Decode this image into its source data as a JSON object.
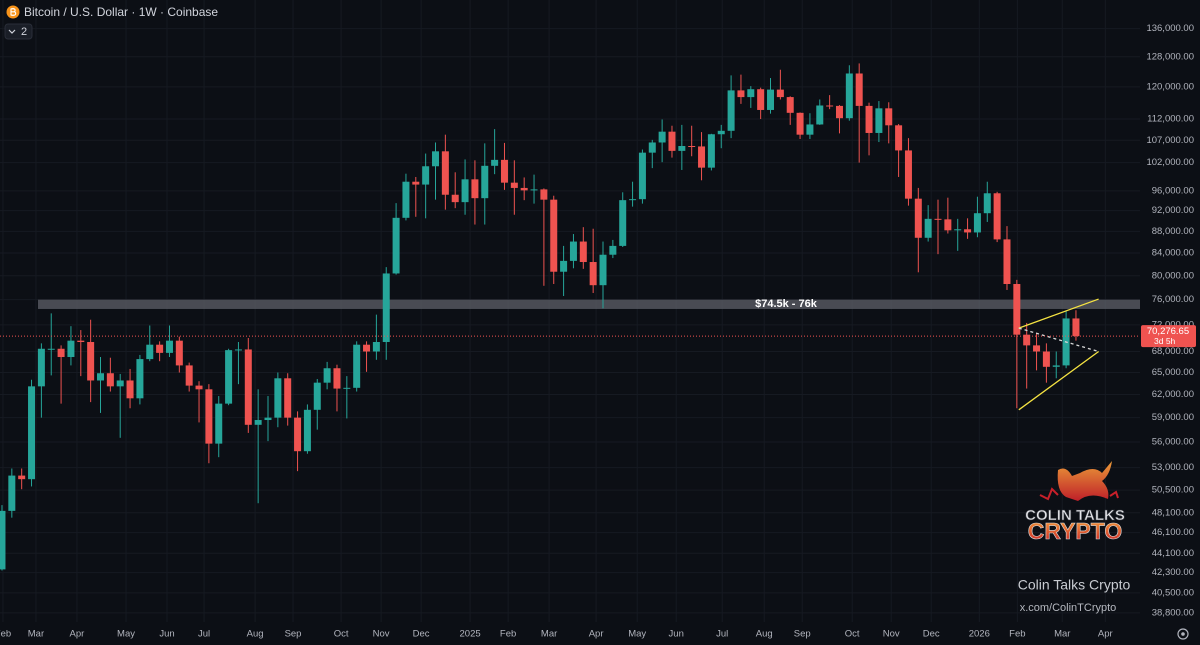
{
  "header": {
    "title": "Bitcoin / U.S. Dollar · 1W · Coinbase",
    "indicator_count": "2"
  },
  "watermark": {
    "logo_line1": "COLIN TALKS",
    "logo_line2": "CRYPTO",
    "name": "Colin Talks Crypto",
    "handle": "x.com/ColinTCrypto"
  },
  "chart_data": {
    "type": "candlestick",
    "log_scale": true,
    "grid": true,
    "up_color": "#26a69a",
    "down_color": "#ef5350",
    "xlim": [
      -0.2,
      115.5
    ],
    "ylim": [
      38050,
      144600
    ],
    "xticks": [
      {
        "value": 0.1,
        "label": "Feb"
      },
      {
        "value": 3.45,
        "label": "Mar"
      },
      {
        "value": 7.61,
        "label": "Apr"
      },
      {
        "value": 12.59,
        "label": "May"
      },
      {
        "value": 16.75,
        "label": "Jun"
      },
      {
        "value": 20.51,
        "label": "Jul"
      },
      {
        "value": 25.69,
        "label": "Aug"
      },
      {
        "value": 29.54,
        "label": "Sep"
      },
      {
        "value": 34.42,
        "label": "Oct"
      },
      {
        "value": 38.48,
        "label": "Nov"
      },
      {
        "value": 42.54,
        "label": "Dec"
      },
      {
        "value": 47.51,
        "label": "2025"
      },
      {
        "value": 51.37,
        "label": "Feb"
      },
      {
        "value": 55.53,
        "label": "Mar"
      },
      {
        "value": 60.3,
        "label": "Apr"
      },
      {
        "value": 64.47,
        "label": "May"
      },
      {
        "value": 68.43,
        "label": "Jun"
      },
      {
        "value": 73.1,
        "label": "Jul"
      },
      {
        "value": 77.36,
        "label": "Aug"
      },
      {
        "value": 81.22,
        "label": "Sep"
      },
      {
        "value": 86.29,
        "label": "Oct"
      },
      {
        "value": 90.25,
        "label": "Nov"
      },
      {
        "value": 94.31,
        "label": "Dec"
      },
      {
        "value": 99.19,
        "label": "2026"
      },
      {
        "value": 103.05,
        "label": "Feb"
      },
      {
        "value": 107.61,
        "label": "Mar"
      },
      {
        "value": 111.98,
        "label": "Apr"
      }
    ],
    "yticks": [
      {
        "value": 136000,
        "label": "136,000.00"
      },
      {
        "value": 128000,
        "label": "128,000.00"
      },
      {
        "value": 120000,
        "label": "120,000.00"
      },
      {
        "value": 112000,
        "label": "112,000.00"
      },
      {
        "value": 107000,
        "label": "107,000.00"
      },
      {
        "value": 102000,
        "label": "102,000.00"
      },
      {
        "value": 96000,
        "label": "96,000.00"
      },
      {
        "value": 92000,
        "label": "92,000.00"
      },
      {
        "value": 88000,
        "label": "88,000.00"
      },
      {
        "value": 84000,
        "label": "84,000.00"
      },
      {
        "value": 80000,
        "label": "80,000.00"
      },
      {
        "value": 76000,
        "label": "76,000.00"
      },
      {
        "value": 72000,
        "label": "72,000.00"
      },
      {
        "value": 68000,
        "label": "68,000.00"
      },
      {
        "value": 65000,
        "label": "65,000.00"
      },
      {
        "value": 62000,
        "label": "62,000.00"
      },
      {
        "value": 59000,
        "label": "59,000.00"
      },
      {
        "value": 56000,
        "label": "56,000.00"
      },
      {
        "value": 53000,
        "label": "53,000.00"
      },
      {
        "value": 50500,
        "label": "50,500.00"
      },
      {
        "value": 48100,
        "label": "48,100.00"
      },
      {
        "value": 46100,
        "label": "46,100.00"
      },
      {
        "value": 44100,
        "label": "44,100.00"
      },
      {
        "value": 42300,
        "label": "42,300.00"
      },
      {
        "value": 40500,
        "label": "40,500.00"
      },
      {
        "value": 38800,
        "label": "38,800.00"
      }
    ],
    "open": [
      42600,
      48300,
      52100,
      51700,
      63100,
      68400,
      68400,
      67200,
      69600,
      69400,
      63900,
      64900,
      63100,
      63900,
      61500,
      66900,
      69000,
      67800,
      69600,
      66000,
      63200,
      62700,
      55800,
      60800,
      68200,
      68300,
      58100,
      58700,
      59000,
      64200,
      59000,
      54900,
      60000,
      63600,
      65600,
      62800,
      62900,
      69000,
      68000,
      69400,
      80400,
      90600,
      97900,
      97300,
      101200,
      104500,
      95200,
      93700,
      98400,
      94500,
      101300,
      102600,
      97700,
      96600,
      96100,
      96300,
      94200,
      80700,
      82600,
      86100,
      82400,
      78400,
      83700,
      85300,
      94100,
      94300,
      104200,
      106500,
      109000,
      104600,
      105700,
      105600,
      100900,
      108400,
      109200,
      119100,
      117400,
      119400,
      114200,
      119300,
      117400,
      113500,
      108300,
      110700,
      115300,
      115200,
      112200,
      123500,
      115200,
      108700,
      114600,
      110500,
      104700,
      94400,
      86800,
      90400,
      90300,
      88200,
      88400,
      87800,
      91500,
      95500,
      86500,
      78600,
      70500,
      68900,
      68000,
      65800,
      66000,
      73000
    ],
    "high": [
      48900,
      52900,
      52900,
      64000,
      69200,
      73800,
      68900,
      71800,
      71200,
      72800,
      67200,
      67100,
      64800,
      65500,
      67500,
      71900,
      69500,
      71900,
      70200,
      66400,
      63800,
      63400,
      61800,
      68400,
      69400,
      70000,
      62700,
      61800,
      65000,
      64900,
      59800,
      60700,
      64100,
      66500,
      66100,
      64500,
      69500,
      69500,
      73600,
      81500,
      93500,
      99600,
      98900,
      104000,
      106500,
      108300,
      99900,
      102700,
      102500,
      106300,
      109600,
      106400,
      102500,
      98800,
      99400,
      96500,
      95000,
      85300,
      87500,
      88800,
      88500,
      86100,
      86400,
      95700,
      97900,
      104900,
      107100,
      111900,
      110400,
      110600,
      110400,
      108900,
      108500,
      110600,
      123000,
      123200,
      120200,
      119800,
      122300,
      124500,
      117600,
      113600,
      113400,
      116800,
      117900,
      115400,
      125700,
      126200,
      116000,
      116400,
      116100,
      110800,
      107500,
      96600,
      93100,
      94200,
      94600,
      90400,
      90500,
      94800,
      97900,
      95800,
      89000,
      79300,
      72300,
      70800,
      69200,
      68000,
      74200,
      74300
    ],
    "low": [
      42500,
      47600,
      50600,
      50900,
      59000,
      64600,
      60800,
      66000,
      64500,
      61000,
      59600,
      62400,
      56500,
      60200,
      60700,
      66600,
      66600,
      67200,
      65000,
      62400,
      58400,
      53500,
      54200,
      60600,
      63400,
      57100,
      49100,
      56100,
      57800,
      58000,
      52600,
      54600,
      57500,
      62700,
      59800,
      58900,
      62400,
      65100,
      66800,
      66800,
      80200,
      90100,
      90800,
      90500,
      94200,
      92200,
      92500,
      91200,
      89300,
      89300,
      99500,
      96200,
      91200,
      94100,
      93400,
      78300,
      78600,
      76600,
      81300,
      81200,
      77100,
      74600,
      83100,
      85100,
      92800,
      93400,
      100800,
      102100,
      103100,
      100400,
      103400,
      98200,
      100300,
      105200,
      107500,
      115700,
      114700,
      112000,
      113300,
      116800,
      110600,
      107300,
      107300,
      110600,
      114400,
      108600,
      111600,
      102000,
      103600,
      106600,
      106300,
      98900,
      93000,
      80600,
      86100,
      83800,
      87600,
      84400,
      86600,
      86900,
      89800,
      86000,
      77600,
      60200,
      62800,
      65300,
      63600,
      64200,
      65600,
      69600
    ],
    "close": [
      48300,
      52100,
      51700,
      63100,
      68400,
      68400,
      67200,
      69600,
      69400,
      63900,
      64900,
      63100,
      63900,
      61500,
      66900,
      69000,
      67800,
      69600,
      66000,
      63200,
      62700,
      55800,
      60800,
      68200,
      68300,
      58100,
      58700,
      59000,
      64200,
      59000,
      54900,
      60000,
      63600,
      65600,
      62800,
      62900,
      69000,
      68000,
      69400,
      80400,
      90600,
      97900,
      97300,
      101200,
      104500,
      95200,
      93700,
      98400,
      94500,
      101300,
      102600,
      97700,
      96600,
      96100,
      96300,
      94200,
      80700,
      82600,
      86100,
      82400,
      78400,
      83700,
      85300,
      94100,
      94300,
      104200,
      106500,
      109000,
      104600,
      105700,
      105600,
      100900,
      108400,
      109200,
      119100,
      117400,
      119400,
      114200,
      119300,
      117400,
      113500,
      108300,
      110700,
      115300,
      115200,
      112200,
      123500,
      115200,
      108700,
      114600,
      110500,
      104700,
      94400,
      86800,
      90400,
      90300,
      88200,
      88400,
      87800,
      91500,
      95500,
      86500,
      78600,
      70500,
      68900,
      68000,
      65800,
      66000,
      73000,
      70276.65
    ],
    "zone": {
      "label": "$74.5k - 76k",
      "low": 74500,
      "high": 76000,
      "color": "#5d6068"
    },
    "current_price": {
      "value": 70276.65,
      "label": "70,276.65",
      "countdown": "3d 5h",
      "color": "#ef5350"
    },
    "trendlines": [
      {
        "color": "#f5e342",
        "dash": false,
        "x": [
          103.2,
          111.3
        ],
        "y": [
          71500,
          76100
        ]
      },
      {
        "color": "#f5e342",
        "dash": false,
        "x": [
          103.2,
          111.3
        ],
        "y": [
          60000,
          68000
        ]
      },
      {
        "color": "#d8d8d8",
        "dash": true,
        "x": [
          103.2,
          111.3
        ],
        "y": [
          71500,
          68000
        ]
      }
    ]
  }
}
